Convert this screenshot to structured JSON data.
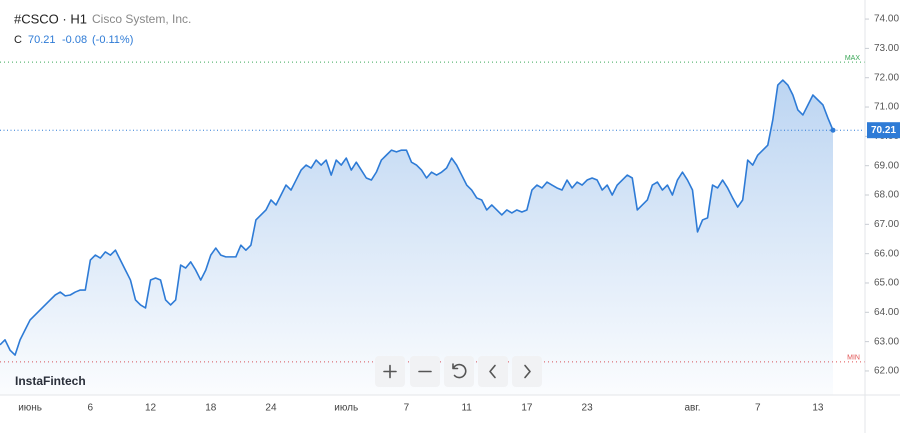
{
  "header": {
    "symbol": "#CSCO · H1",
    "company": "Cisco System, Inc.",
    "close_label": "C",
    "close": 70.21,
    "change": -0.08,
    "change_pct": "(-0.11%)"
  },
  "watermark": "InstaFintech",
  "chart_data": {
    "type": "area",
    "categories": [
      null,
      null,
      null,
      null,
      null,
      null,
      "июнь",
      null,
      null,
      null,
      null,
      null,
      null,
      null,
      null,
      null,
      null,
      null,
      "6",
      null,
      null,
      null,
      null,
      null,
      null,
      null,
      null,
      null,
      null,
      null,
      "12",
      null,
      null,
      null,
      null,
      null,
      null,
      null,
      null,
      null,
      null,
      null,
      "18",
      null,
      null,
      null,
      null,
      null,
      null,
      null,
      null,
      null,
      null,
      null,
      "24",
      null,
      null,
      null,
      null,
      null,
      null,
      null,
      null,
      null,
      null,
      null,
      null,
      null,
      null,
      "июль",
      null,
      null,
      null,
      null,
      null,
      null,
      null,
      null,
      null,
      null,
      null,
      "7",
      null,
      null,
      null,
      null,
      null,
      null,
      null,
      null,
      null,
      null,
      null,
      "11",
      null,
      null,
      null,
      null,
      null,
      null,
      null,
      null,
      null,
      null,
      null,
      "17",
      null,
      null,
      null,
      null,
      null,
      null,
      null,
      null,
      null,
      null,
      null,
      "23",
      null,
      null,
      null,
      null,
      null,
      null,
      null,
      null,
      null,
      null,
      null,
      null,
      null,
      null,
      null,
      null,
      null,
      null,
      null,
      null,
      "авг.",
      null,
      null,
      null,
      null,
      null,
      null,
      null,
      null,
      null,
      null,
      null,
      null,
      "7",
      null,
      null,
      null,
      null,
      null,
      null,
      null,
      null,
      null,
      null,
      null,
      "13",
      null,
      null,
      null
    ],
    "values": [
      62.89,
      63.06,
      62.71,
      62.54,
      63.06,
      63.4,
      63.74,
      63.91,
      64.08,
      64.25,
      64.42,
      64.59,
      64.69,
      64.56,
      64.59,
      64.69,
      64.76,
      64.76,
      65.78,
      65.95,
      65.85,
      66.06,
      65.95,
      66.12,
      65.78,
      65.44,
      65.1,
      64.42,
      64.25,
      64.15,
      65.1,
      65.17,
      65.1,
      64.42,
      64.25,
      64.42,
      65.61,
      65.51,
      65.72,
      65.44,
      65.1,
      65.44,
      65.95,
      66.19,
      65.95,
      65.89,
      65.89,
      65.89,
      66.29,
      66.12,
      66.29,
      67.15,
      67.32,
      67.49,
      67.83,
      67.66,
      68.0,
      68.34,
      68.17,
      68.51,
      68.85,
      69.02,
      68.92,
      69.19,
      69.02,
      69.19,
      68.68,
      69.19,
      69.02,
      69.26,
      68.85,
      69.12,
      68.85,
      68.58,
      68.51,
      68.78,
      69.19,
      69.36,
      69.53,
      69.47,
      69.53,
      69.53,
      69.12,
      69.02,
      68.85,
      68.58,
      68.78,
      68.68,
      68.78,
      68.92,
      69.26,
      69.02,
      68.68,
      68.34,
      68.17,
      67.9,
      67.83,
      67.49,
      67.66,
      67.49,
      67.32,
      67.49,
      67.39,
      67.49,
      67.42,
      67.49,
      68.17,
      68.34,
      68.24,
      68.44,
      68.34,
      68.24,
      68.17,
      68.51,
      68.24,
      68.44,
      68.34,
      68.51,
      68.58,
      68.51,
      68.17,
      68.34,
      68.0,
      68.34,
      68.51,
      68.68,
      68.58,
      67.49,
      67.66,
      67.83,
      68.34,
      68.44,
      68.17,
      68.34,
      68.0,
      68.51,
      68.78,
      68.51,
      68.17,
      66.74,
      67.15,
      67.22,
      68.34,
      68.24,
      68.51,
      68.24,
      67.9,
      67.59,
      67.83,
      69.19,
      69.02,
      69.36,
      69.53,
      69.7,
      70.56,
      71.75,
      71.92,
      71.75,
      71.41,
      70.9,
      70.73,
      71.07,
      71.41,
      71.24,
      71.07,
      70.62,
      70.21
    ],
    "color": "#2e7bd6",
    "ylim": [
      61.18,
      74.65
    ],
    "yticks": [
      {
        "value": 62,
        "label": "62.00"
      },
      {
        "value": 63,
        "label": "63.00"
      },
      {
        "value": 64,
        "label": "64.00"
      },
      {
        "value": 65,
        "label": "65.00"
      },
      {
        "value": 66,
        "label": "66.00"
      },
      {
        "value": 67,
        "label": "67.00"
      },
      {
        "value": 68,
        "label": "68.00"
      },
      {
        "value": 69,
        "label": "69.00"
      },
      {
        "value": 70,
        "label": "70.00"
      },
      {
        "value": 71,
        "label": "71.00"
      },
      {
        "value": 72,
        "label": "72.00"
      },
      {
        "value": 73,
        "label": "73.00"
      },
      {
        "value": 74,
        "label": "74.00"
      }
    ],
    "last_price": 70.21,
    "max_line": {
      "value": 72.53,
      "label": "MAX",
      "color": "#3aa757"
    },
    "min_line": {
      "value": 62.31,
      "label": "MIN",
      "color": "#e05252"
    }
  }
}
